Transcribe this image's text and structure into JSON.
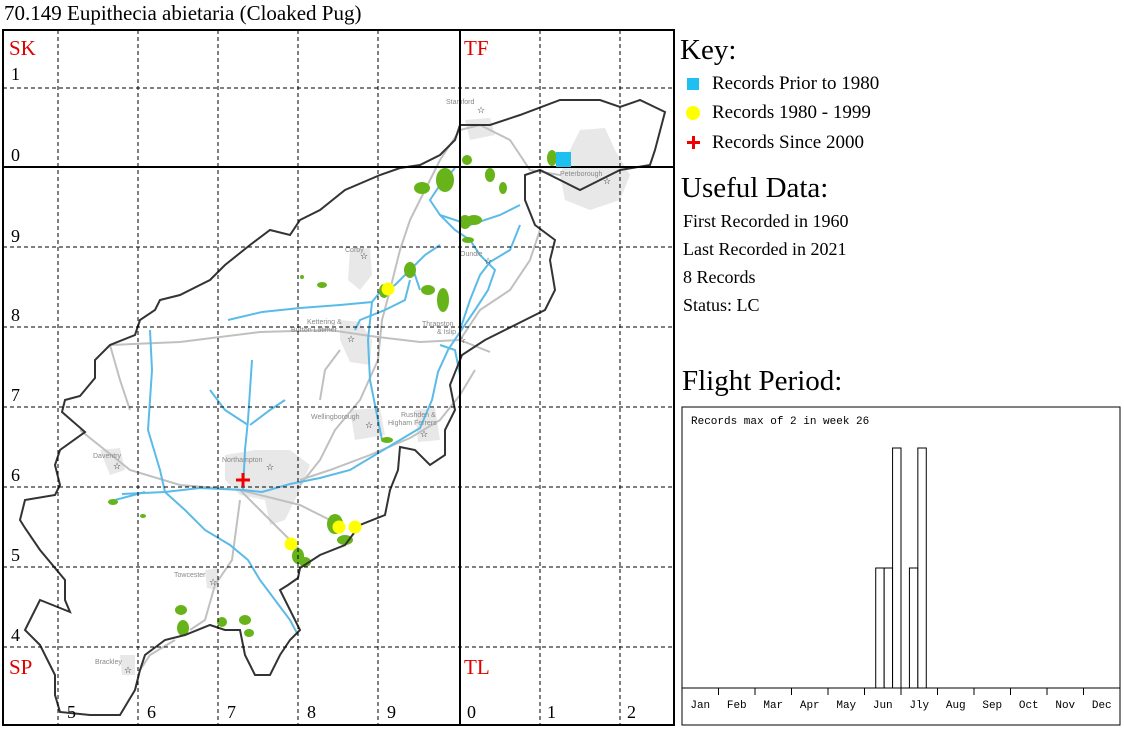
{
  "title": "70.149 Eupithecia abietaria (Cloaked Pug)",
  "map": {
    "squares": [
      "SK",
      "TF",
      "SP",
      "TL"
    ],
    "row_labels": [
      "1",
      "0",
      "9",
      "8",
      "7",
      "6",
      "5",
      "4"
    ],
    "col_labels": [
      "5",
      "6",
      "7",
      "8",
      "9",
      "0",
      "1",
      "2"
    ],
    "towns": [
      "Stamford",
      "Peterborough",
      "Corby",
      "Oundle",
      "Kettering &",
      "Burton Latimer",
      "Thrapston",
      "& Islip",
      "Wellingborough",
      "Rushden &",
      "Higham Ferrers",
      "Daventry",
      "Northampton",
      "Towcester",
      "Brackley"
    ],
    "colors": {
      "outline": "#333333",
      "river": "#5bbbe8",
      "road": "#bdbdbd",
      "urban": "#e6e6e6",
      "woodland": "#66b31a",
      "grid_letter": "#e00000"
    }
  },
  "key": {
    "heading": "Key:",
    "items": [
      {
        "label": "Records Prior to 1980",
        "symbol": "square",
        "color": "#1fbfef"
      },
      {
        "label": "Records 1980 - 1999",
        "symbol": "circle",
        "color": "#ffff00"
      },
      {
        "label": "Records Since 2000",
        "symbol": "cross",
        "color": "#ee0000"
      }
    ]
  },
  "useful_data": {
    "heading": "Useful Data:",
    "first_recorded": "First Recorded in 1960",
    "last_recorded": "Last Recorded in 2021",
    "records": "8 Records",
    "status": "Status: LC"
  },
  "flight_period": {
    "heading": "Flight Period:"
  },
  "chart_data": {
    "type": "bar",
    "title": "Records max of 2 in week 26",
    "xlabel": "",
    "ylabel": "",
    "x_unit": "week",
    "weeks": [
      24,
      25,
      26,
      28,
      29
    ],
    "values": [
      1,
      1,
      2,
      1,
      2
    ],
    "total_weeks": 52,
    "ylim": [
      0,
      2
    ],
    "month_labels": [
      "Jan",
      "Feb",
      "Mar",
      "Apr",
      "May",
      "Jun",
      "Jly",
      "Aug",
      "Sep",
      "Oct",
      "Nov",
      "Dec"
    ],
    "grid": false
  }
}
